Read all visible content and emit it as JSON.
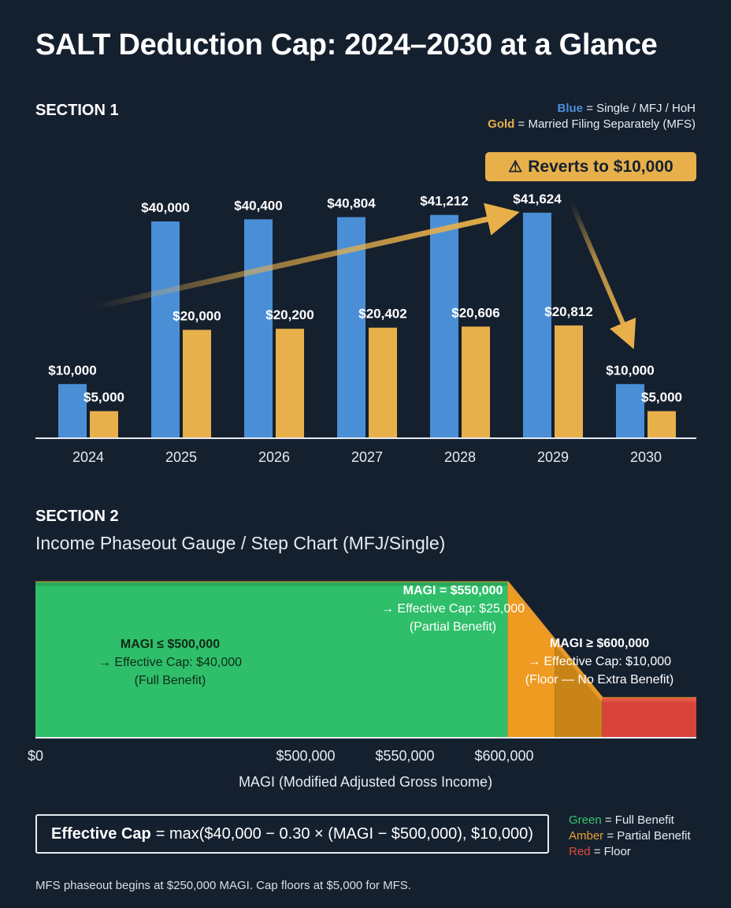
{
  "title": "SALT Deduction Cap: 2024–2030 at a Glance",
  "section1": {
    "label": "SECTION 1",
    "legend": {
      "blue_key": "Blue",
      "blue_text": "= Single / MFJ / HoH",
      "gold_key": "Gold",
      "gold_text": "= Married Filing Separately (MFS)"
    },
    "callout": "Reverts to $10,000",
    "callout_icon": "warning-triangle-icon"
  },
  "section2": {
    "label": "SECTION 2",
    "subtitle": "Income Phaseout Gauge / Step Chart (MFJ/Single)",
    "annotations": {
      "full": [
        "MAGI ≤ $500,000",
        "→ Effective Cap: $40,000",
        "(Full Benefit)"
      ],
      "partial": [
        "MAGI = $550,000",
        "→ Effective Cap: $25,000",
        "(Partial Benefit)"
      ],
      "floor": [
        "MAGI ≥ $600,000",
        "→ Effective Cap: $10,000",
        "(Floor — No Extra Benefit)"
      ]
    },
    "x_ticks": [
      "$0",
      "$500,000",
      "$550,000",
      "$600,000"
    ],
    "x_label": "MAGI (Modified Adjusted Gross Income)",
    "formula_bold": "Effective Cap",
    "formula_rest": "= max($40,000 − 0.30 × (MAGI − $500,000), $10,000)",
    "legend": {
      "green_key": "Green",
      "green_text": "= Full Benefit",
      "amber_key": "Amber",
      "amber_text": "= Partial Benefit",
      "red_key": "Red",
      "red_text": "= Floor"
    },
    "footnote": "MFS phaseout begins at $250,000 MAGI. Cap floors at $5,000 for MFS."
  },
  "colors": {
    "blue": "#4a8fd6",
    "gold": "#e8b04a",
    "green": "#2fbf6a",
    "amber": "#ef9a20",
    "amber_dark": "#c98418",
    "red": "#d9443a",
    "background": "#15202f"
  },
  "chart_data": [
    {
      "type": "bar",
      "categories": [
        "2024",
        "2025",
        "2026",
        "2027",
        "2028",
        "2029",
        "2030"
      ],
      "series": [
        {
          "name": "Single / MFJ / HoH",
          "values": [
            10000,
            40000,
            40400,
            40804,
            41212,
            41624,
            10000
          ],
          "labels": [
            "$10,000",
            "$40,000",
            "$40,400",
            "$40,804",
            "$41,212",
            "$41,624",
            "$10,000"
          ]
        },
        {
          "name": "Married Filing Separately (MFS)",
          "values": [
            5000,
            20000,
            20200,
            20402,
            20606,
            20812,
            5000
          ],
          "labels": [
            "$5,000",
            "$20,000",
            "$20,200",
            "$20,402",
            "$20,606",
            "$20,812",
            "$5,000"
          ]
        }
      ],
      "ylim": [
        0,
        48000
      ],
      "grid": false,
      "legend": "top-right"
    },
    {
      "type": "area",
      "x": [
        0,
        500000,
        550000,
        600000,
        700000
      ],
      "y": [
        40000,
        40000,
        25000,
        10000,
        10000
      ],
      "zones": [
        {
          "name": "Full Benefit",
          "from": 0,
          "to": 500000,
          "color": "green"
        },
        {
          "name": "Partial Benefit",
          "from": 500000,
          "to": 600000,
          "color": "amber"
        },
        {
          "name": "Floor",
          "from": 600000,
          "to": 700000,
          "color": "red"
        }
      ],
      "xlim": [
        0,
        700000
      ],
      "ylim": [
        0,
        40000
      ]
    }
  ]
}
